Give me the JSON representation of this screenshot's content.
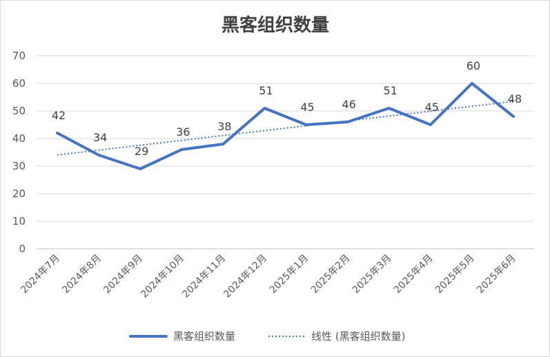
{
  "chart_data": {
    "type": "line",
    "title": "黑客组织数量",
    "categories": [
      "2024年7月",
      "2024年8月",
      "2024年9月",
      "2024年10月",
      "2024年11月",
      "2024年12月",
      "2025年1月",
      "2025年2月",
      "2025年3月",
      "2025年4月",
      "2025年5月",
      "2025年6月"
    ],
    "series": [
      {
        "name": "黑客组织数量",
        "values": [
          42,
          34,
          29,
          36,
          38,
          51,
          45,
          46,
          51,
          45,
          60,
          48
        ],
        "color": "#4472c4",
        "style": "solid"
      }
    ],
    "trendline": {
      "name": "线性 (黑客组织数量)",
      "type": "linear",
      "color": "#4472c4",
      "style": "dotted"
    },
    "ylim": [
      0,
      70
    ],
    "yticks": [
      0,
      10,
      20,
      30,
      40,
      50,
      60,
      70
    ],
    "grid": true,
    "legend": "bottom",
    "xlabel": "",
    "ylabel": ""
  },
  "colors": {
    "gridline": "#d9d9d9",
    "axis": "#bfbfbf"
  }
}
